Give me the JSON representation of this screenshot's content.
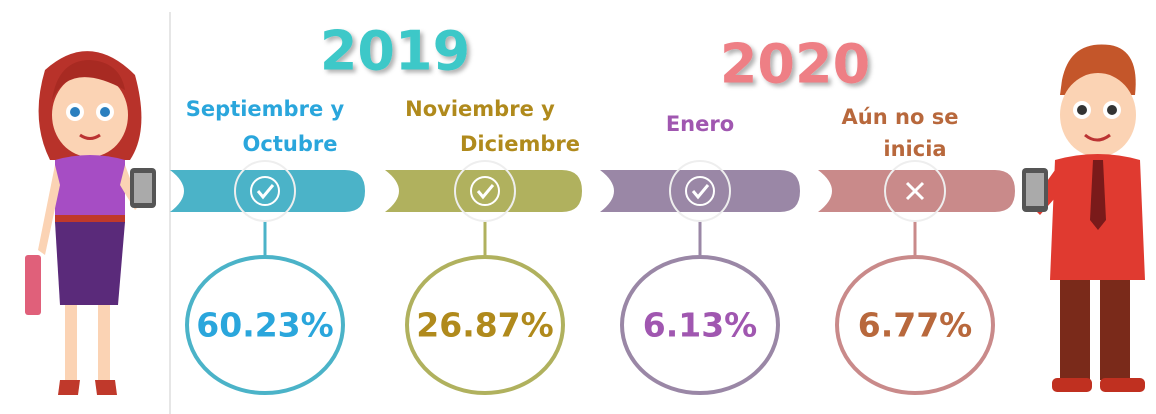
{
  "years": [
    "2019",
    "2020"
  ],
  "stages": [
    {
      "label": [
        "Septiembre y",
        "Octubre"
      ],
      "value": "60.23%"
    },
    {
      "label": [
        "Noviembre y",
        "Diciembre"
      ],
      "value": "26.87%"
    },
    {
      "label": [
        "Enero"
      ],
      "value": "6.13%"
    },
    {
      "label": [
        "Aún no se",
        "inicia"
      ],
      "value": "6.77%"
    }
  ]
}
